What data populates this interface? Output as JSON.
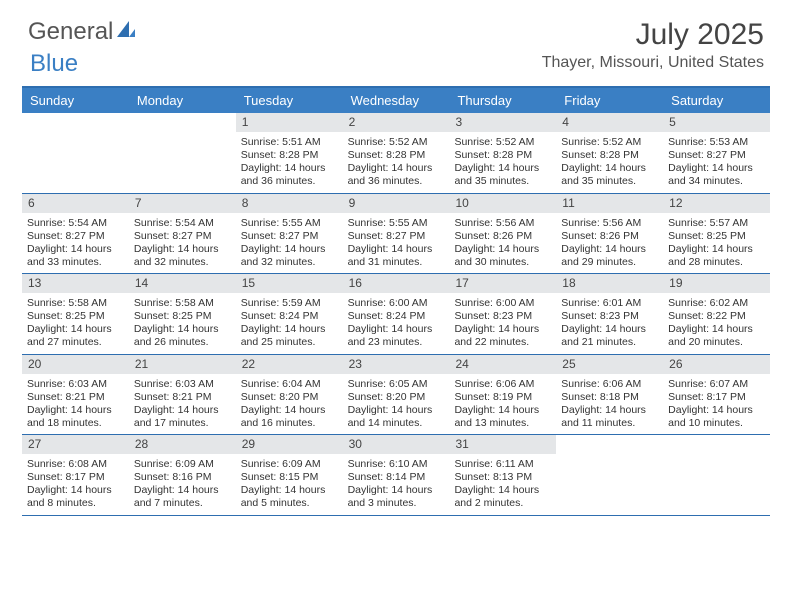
{
  "brand": {
    "part1": "General",
    "part2": "Blue"
  },
  "title": "July 2025",
  "location": "Thayer, Missouri, United States",
  "colors": {
    "header_bg": "#3a7fc4",
    "border": "#2e6eb0",
    "daynum_bg": "#e4e6e8",
    "text": "#333333",
    "title_text": "#444444"
  },
  "day_names": [
    "Sunday",
    "Monday",
    "Tuesday",
    "Wednesday",
    "Thursday",
    "Friday",
    "Saturday"
  ],
  "weeks": [
    [
      {
        "blank": true
      },
      {
        "blank": true
      },
      {
        "n": "1",
        "sr": "Sunrise: 5:51 AM",
        "ss": "Sunset: 8:28 PM",
        "d1": "Daylight: 14 hours",
        "d2": "and 36 minutes."
      },
      {
        "n": "2",
        "sr": "Sunrise: 5:52 AM",
        "ss": "Sunset: 8:28 PM",
        "d1": "Daylight: 14 hours",
        "d2": "and 36 minutes."
      },
      {
        "n": "3",
        "sr": "Sunrise: 5:52 AM",
        "ss": "Sunset: 8:28 PM",
        "d1": "Daylight: 14 hours",
        "d2": "and 35 minutes."
      },
      {
        "n": "4",
        "sr": "Sunrise: 5:52 AM",
        "ss": "Sunset: 8:28 PM",
        "d1": "Daylight: 14 hours",
        "d2": "and 35 minutes."
      },
      {
        "n": "5",
        "sr": "Sunrise: 5:53 AM",
        "ss": "Sunset: 8:27 PM",
        "d1": "Daylight: 14 hours",
        "d2": "and 34 minutes."
      }
    ],
    [
      {
        "n": "6",
        "sr": "Sunrise: 5:54 AM",
        "ss": "Sunset: 8:27 PM",
        "d1": "Daylight: 14 hours",
        "d2": "and 33 minutes."
      },
      {
        "n": "7",
        "sr": "Sunrise: 5:54 AM",
        "ss": "Sunset: 8:27 PM",
        "d1": "Daylight: 14 hours",
        "d2": "and 32 minutes."
      },
      {
        "n": "8",
        "sr": "Sunrise: 5:55 AM",
        "ss": "Sunset: 8:27 PM",
        "d1": "Daylight: 14 hours",
        "d2": "and 32 minutes."
      },
      {
        "n": "9",
        "sr": "Sunrise: 5:55 AM",
        "ss": "Sunset: 8:27 PM",
        "d1": "Daylight: 14 hours",
        "d2": "and 31 minutes."
      },
      {
        "n": "10",
        "sr": "Sunrise: 5:56 AM",
        "ss": "Sunset: 8:26 PM",
        "d1": "Daylight: 14 hours",
        "d2": "and 30 minutes."
      },
      {
        "n": "11",
        "sr": "Sunrise: 5:56 AM",
        "ss": "Sunset: 8:26 PM",
        "d1": "Daylight: 14 hours",
        "d2": "and 29 minutes."
      },
      {
        "n": "12",
        "sr": "Sunrise: 5:57 AM",
        "ss": "Sunset: 8:25 PM",
        "d1": "Daylight: 14 hours",
        "d2": "and 28 minutes."
      }
    ],
    [
      {
        "n": "13",
        "sr": "Sunrise: 5:58 AM",
        "ss": "Sunset: 8:25 PM",
        "d1": "Daylight: 14 hours",
        "d2": "and 27 minutes."
      },
      {
        "n": "14",
        "sr": "Sunrise: 5:58 AM",
        "ss": "Sunset: 8:25 PM",
        "d1": "Daylight: 14 hours",
        "d2": "and 26 minutes."
      },
      {
        "n": "15",
        "sr": "Sunrise: 5:59 AM",
        "ss": "Sunset: 8:24 PM",
        "d1": "Daylight: 14 hours",
        "d2": "and 25 minutes."
      },
      {
        "n": "16",
        "sr": "Sunrise: 6:00 AM",
        "ss": "Sunset: 8:24 PM",
        "d1": "Daylight: 14 hours",
        "d2": "and 23 minutes."
      },
      {
        "n": "17",
        "sr": "Sunrise: 6:00 AM",
        "ss": "Sunset: 8:23 PM",
        "d1": "Daylight: 14 hours",
        "d2": "and 22 minutes."
      },
      {
        "n": "18",
        "sr": "Sunrise: 6:01 AM",
        "ss": "Sunset: 8:23 PM",
        "d1": "Daylight: 14 hours",
        "d2": "and 21 minutes."
      },
      {
        "n": "19",
        "sr": "Sunrise: 6:02 AM",
        "ss": "Sunset: 8:22 PM",
        "d1": "Daylight: 14 hours",
        "d2": "and 20 minutes."
      }
    ],
    [
      {
        "n": "20",
        "sr": "Sunrise: 6:03 AM",
        "ss": "Sunset: 8:21 PM",
        "d1": "Daylight: 14 hours",
        "d2": "and 18 minutes."
      },
      {
        "n": "21",
        "sr": "Sunrise: 6:03 AM",
        "ss": "Sunset: 8:21 PM",
        "d1": "Daylight: 14 hours",
        "d2": "and 17 minutes."
      },
      {
        "n": "22",
        "sr": "Sunrise: 6:04 AM",
        "ss": "Sunset: 8:20 PM",
        "d1": "Daylight: 14 hours",
        "d2": "and 16 minutes."
      },
      {
        "n": "23",
        "sr": "Sunrise: 6:05 AM",
        "ss": "Sunset: 8:20 PM",
        "d1": "Daylight: 14 hours",
        "d2": "and 14 minutes."
      },
      {
        "n": "24",
        "sr": "Sunrise: 6:06 AM",
        "ss": "Sunset: 8:19 PM",
        "d1": "Daylight: 14 hours",
        "d2": "and 13 minutes."
      },
      {
        "n": "25",
        "sr": "Sunrise: 6:06 AM",
        "ss": "Sunset: 8:18 PM",
        "d1": "Daylight: 14 hours",
        "d2": "and 11 minutes."
      },
      {
        "n": "26",
        "sr": "Sunrise: 6:07 AM",
        "ss": "Sunset: 8:17 PM",
        "d1": "Daylight: 14 hours",
        "d2": "and 10 minutes."
      }
    ],
    [
      {
        "n": "27",
        "sr": "Sunrise: 6:08 AM",
        "ss": "Sunset: 8:17 PM",
        "d1": "Daylight: 14 hours",
        "d2": "and 8 minutes."
      },
      {
        "n": "28",
        "sr": "Sunrise: 6:09 AM",
        "ss": "Sunset: 8:16 PM",
        "d1": "Daylight: 14 hours",
        "d2": "and 7 minutes."
      },
      {
        "n": "29",
        "sr": "Sunrise: 6:09 AM",
        "ss": "Sunset: 8:15 PM",
        "d1": "Daylight: 14 hours",
        "d2": "and 5 minutes."
      },
      {
        "n": "30",
        "sr": "Sunrise: 6:10 AM",
        "ss": "Sunset: 8:14 PM",
        "d1": "Daylight: 14 hours",
        "d2": "and 3 minutes."
      },
      {
        "n": "31",
        "sr": "Sunrise: 6:11 AM",
        "ss": "Sunset: 8:13 PM",
        "d1": "Daylight: 14 hours",
        "d2": "and 2 minutes."
      },
      {
        "blank": true
      },
      {
        "blank": true
      }
    ]
  ]
}
